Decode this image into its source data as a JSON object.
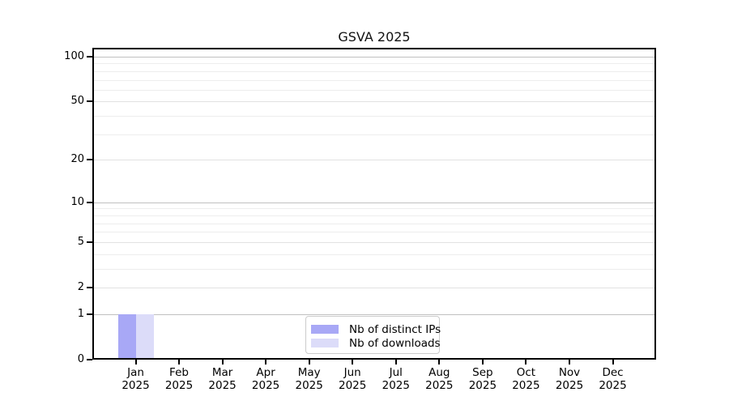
{
  "figure": {
    "background": "#ffffff"
  },
  "chart_data": {
    "type": "bar",
    "title": "GSVA 2025",
    "x_categories": [
      "Jan",
      "Feb",
      "Mar",
      "Apr",
      "May",
      "Jun",
      "Jul",
      "Aug",
      "Sep",
      "Oct",
      "Nov",
      "Dec"
    ],
    "x_sublabel": "2025",
    "series": [
      {
        "name": "Nb of distinct IPs",
        "color": "#a8a8f6",
        "values": [
          1,
          0,
          0,
          0,
          0,
          0,
          0,
          0,
          0,
          0,
          0,
          0
        ]
      },
      {
        "name": "Nb of downloads",
        "color": "#dcdcf9",
        "values": [
          1,
          0,
          0,
          0,
          0,
          0,
          0,
          0,
          0,
          0,
          0,
          0
        ]
      }
    ],
    "yscale": "log1p",
    "ylim": [
      0,
      114
    ],
    "yticks_labeled": [
      0,
      1,
      2,
      5,
      10,
      20,
      50,
      100
    ],
    "grid_major": [
      1,
      10,
      100
    ],
    "grid_mid": [
      2,
      5,
      20,
      50
    ],
    "grid_minor": [
      3,
      4,
      6,
      7,
      8,
      9,
      30,
      40,
      60,
      70,
      80,
      90
    ],
    "grid_colors": {
      "major": "#c0c0c0",
      "mid": "#e2e2e2",
      "minor": "#ededed"
    },
    "axis_color": "#000000",
    "legend_position": "bottom-center",
    "grid": "horizontal"
  }
}
